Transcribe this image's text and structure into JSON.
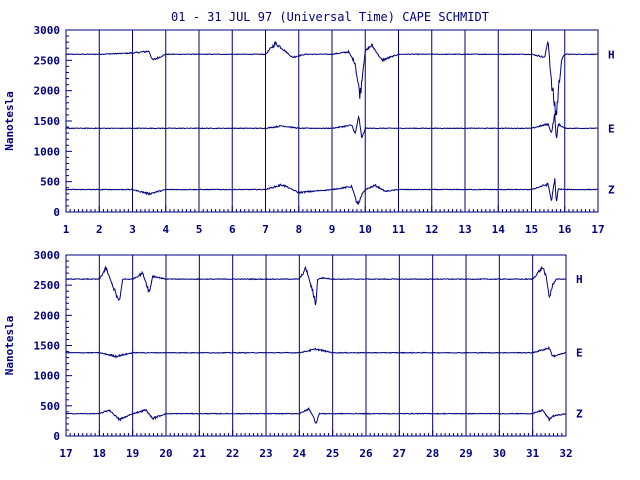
{
  "title": "01 - 31 JUL 97 (Universal Time) CAPE SCHMIDT",
  "colors": {
    "ink": "#000080",
    "background": "#ffffff"
  },
  "chart_data": [
    {
      "type": "line",
      "ylabel": "Nanotesla",
      "xlim": [
        1,
        17
      ],
      "ylim": [
        0,
        3000
      ],
      "yticks": [
        0,
        500,
        1000,
        1500,
        2000,
        2500,
        3000
      ],
      "xticks": [
        1,
        2,
        3,
        4,
        5,
        6,
        7,
        8,
        9,
        10,
        11,
        12,
        13,
        14,
        15,
        16,
        17
      ],
      "series": [
        {
          "name": "H",
          "baseline": 2600,
          "x": [
            1,
            2,
            3,
            3.5,
            3.6,
            4,
            5,
            6,
            7,
            7.3,
            7.5,
            7.8,
            8.2,
            9,
            9.5,
            9.7,
            9.8,
            9.85,
            9.9,
            10,
            10.2,
            10.5,
            11,
            12,
            13,
            14,
            15,
            15.4,
            15.5,
            15.6,
            15.7,
            15.75,
            15.8,
            15.9,
            16,
            17
          ],
          "y": [
            2600,
            2600,
            2620,
            2650,
            2500,
            2600,
            2600,
            2600,
            2600,
            2780,
            2700,
            2550,
            2600,
            2600,
            2640,
            2450,
            2050,
            1950,
            2200,
            2650,
            2750,
            2500,
            2600,
            2600,
            2600,
            2600,
            2600,
            2550,
            2850,
            2100,
            1750,
            1600,
            1950,
            2500,
            2600,
            2600
          ]
        },
        {
          "name": "E",
          "baseline": 1380,
          "x": [
            1,
            3,
            5,
            7,
            7.5,
            8,
            9,
            9.6,
            9.7,
            9.8,
            9.9,
            10,
            10.5,
            11,
            13,
            15,
            15.5,
            15.6,
            15.7,
            15.75,
            15.8,
            16,
            17
          ],
          "y": [
            1380,
            1380,
            1380,
            1380,
            1420,
            1380,
            1380,
            1430,
            1280,
            1580,
            1200,
            1380,
            1380,
            1380,
            1380,
            1380,
            1450,
            1300,
            1620,
            1150,
            1450,
            1380,
            1380
          ]
        },
        {
          "name": "Z",
          "baseline": 370,
          "x": [
            1,
            3,
            3.5,
            4,
            5,
            7,
            7.5,
            8,
            9,
            9.6,
            9.7,
            9.8,
            9.9,
            10,
            10.3,
            10.6,
            11,
            13,
            15,
            15.5,
            15.6,
            15.7,
            15.75,
            15.8,
            16,
            17
          ],
          "y": [
            370,
            370,
            300,
            370,
            370,
            370,
            450,
            320,
            370,
            420,
            220,
            120,
            280,
            370,
            440,
            340,
            370,
            370,
            370,
            460,
            180,
            560,
            120,
            380,
            370,
            370
          ]
        }
      ]
    },
    {
      "type": "line",
      "ylabel": "Nanotesla",
      "xlim": [
        17,
        32
      ],
      "ylim": [
        0,
        3000
      ],
      "yticks": [
        0,
        500,
        1000,
        1500,
        2000,
        2500,
        3000
      ],
      "xticks": [
        17,
        18,
        19,
        20,
        21,
        22,
        23,
        24,
        25,
        26,
        27,
        28,
        29,
        30,
        31,
        32
      ],
      "series": [
        {
          "name": "H",
          "baseline": 2600,
          "x": [
            17,
            18,
            18.2,
            18.5,
            18.6,
            18.7,
            19,
            19.3,
            19.5,
            19.6,
            20,
            22,
            24,
            24.2,
            24.5,
            24.55,
            24.7,
            25,
            27,
            29,
            31,
            31.3,
            31.4,
            31.5,
            31.6,
            31.7,
            32
          ],
          "y": [
            2600,
            2600,
            2780,
            2350,
            2200,
            2600,
            2600,
            2700,
            2380,
            2650,
            2600,
            2600,
            2600,
            2780,
            2200,
            2600,
            2620,
            2600,
            2600,
            2600,
            2600,
            2800,
            2650,
            2300,
            2500,
            2600,
            2600
          ]
        },
        {
          "name": "E",
          "baseline": 1380,
          "x": [
            17,
            18,
            18.5,
            19,
            20,
            22,
            24,
            24.5,
            25,
            27,
            29,
            31,
            31.5,
            31.6,
            32
          ],
          "y": [
            1380,
            1380,
            1320,
            1380,
            1380,
            1380,
            1380,
            1440,
            1380,
            1380,
            1380,
            1380,
            1460,
            1320,
            1380
          ]
        },
        {
          "name": "Z",
          "baseline": 370,
          "x": [
            17,
            18,
            18.3,
            18.6,
            19,
            19.4,
            19.6,
            20,
            22,
            24,
            24.3,
            24.5,
            24.6,
            25,
            27,
            29,
            31,
            31.3,
            31.5,
            31.6,
            32
          ],
          "y": [
            370,
            370,
            430,
            270,
            370,
            430,
            290,
            370,
            370,
            370,
            450,
            220,
            370,
            370,
            370,
            370,
            370,
            430,
            270,
            330,
            370
          ]
        }
      ]
    }
  ]
}
